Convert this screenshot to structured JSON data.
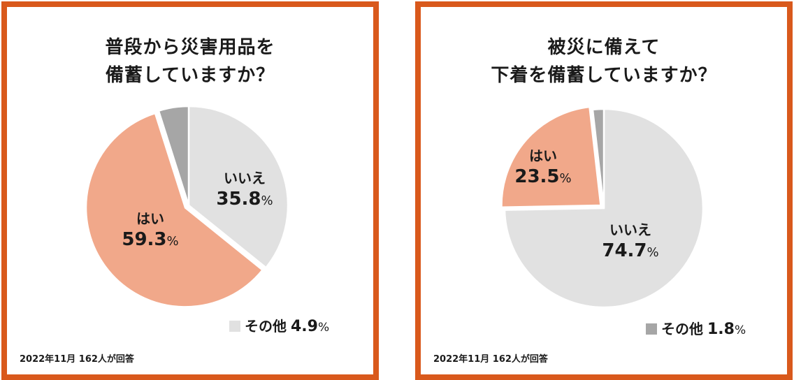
{
  "colors": {
    "border": "#d9591c",
    "yes": "#f1a88a",
    "no": "#e1e1e1",
    "other": "#a6a6a6"
  },
  "chart_data": [
    {
      "type": "pie",
      "title_lines": [
        "普段から災害用品を",
        "備蓄していますか？"
      ],
      "slices": [
        {
          "label": "いいえ",
          "value": 35.8,
          "color": "#e1e1e1"
        },
        {
          "label": "はい",
          "value": 59.3,
          "color": "#f1a88a"
        },
        {
          "label": "その他",
          "value": 4.9,
          "color": "#a6a6a6"
        }
      ],
      "value_texts": [
        "35.8",
        "59.3",
        "4.9"
      ],
      "percent_sign": "%",
      "footnote": "2022年11月 162人が回答"
    },
    {
      "type": "pie",
      "title_lines": [
        "被災に備えて",
        "下着を備蓄していますか？"
      ],
      "slices": [
        {
          "label": "いいえ",
          "value": 74.7,
          "color": "#e1e1e1"
        },
        {
          "label": "はい",
          "value": 23.5,
          "color": "#f1a88a"
        },
        {
          "label": "その他",
          "value": 1.8,
          "color": "#a6a6a6"
        }
      ],
      "value_texts": [
        "74.7",
        "23.5",
        "1.8"
      ],
      "percent_sign": "%",
      "footnote": "2022年11月 162人が回答"
    }
  ]
}
